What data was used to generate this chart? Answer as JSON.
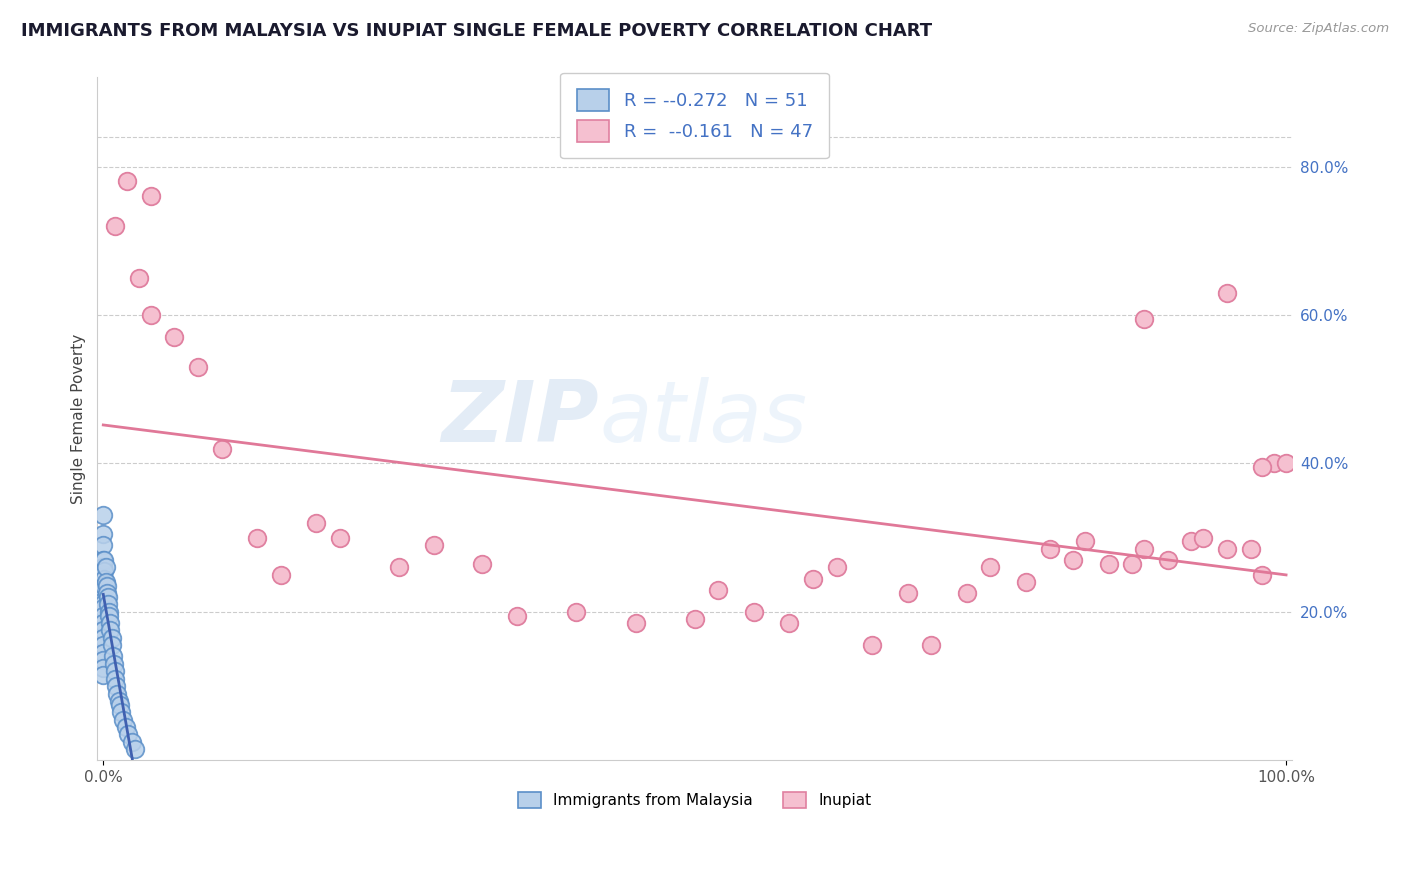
{
  "title": "IMMIGRANTS FROM MALAYSIA VS INUPIAT SINGLE FEMALE POVERTY CORRELATION CHART",
  "source": "Source: ZipAtlas.com",
  "ylabel": "Single Female Poverty",
  "xlim": [
    -0.005,
    1.005
  ],
  "ylim": [
    0.0,
    0.92
  ],
  "xtick_positions": [
    0.0,
    1.0
  ],
  "xtick_labels": [
    "0.0%",
    "100.0%"
  ],
  "ytick_positions": [
    0.2,
    0.4,
    0.6,
    0.8
  ],
  "ytick_labels": [
    "20.0%",
    "40.0%",
    "60.0%",
    "80.0%"
  ],
  "legend_r1": "-0.272",
  "legend_n1": "51",
  "legend_r2": "-0.161",
  "legend_n2": "47",
  "blue_color": "#b8d0ea",
  "blue_edge": "#5b8fc8",
  "pink_color": "#f5c0d0",
  "pink_edge": "#e080a0",
  "line_pink": "#e07898",
  "line_blue": "#4060b0",
  "watermark_color": "#ccddf0",
  "blue_scatter_x": [
    0.0,
    0.0,
    0.0,
    0.0,
    0.0,
    0.0,
    0.0,
    0.0,
    0.0,
    0.0,
    0.0,
    0.0,
    0.0,
    0.0,
    0.0,
    0.0,
    0.0,
    0.0,
    0.0,
    0.0,
    0.0,
    0.001,
    0.001,
    0.001,
    0.001,
    0.002,
    0.002,
    0.003,
    0.003,
    0.004,
    0.004,
    0.005,
    0.005,
    0.006,
    0.006,
    0.007,
    0.007,
    0.008,
    0.009,
    0.01,
    0.01,
    0.011,
    0.012,
    0.013,
    0.014,
    0.015,
    0.017,
    0.019,
    0.021,
    0.024,
    0.027
  ],
  "blue_scatter_y": [
    0.33,
    0.305,
    0.29,
    0.27,
    0.26,
    0.25,
    0.24,
    0.23,
    0.225,
    0.215,
    0.21,
    0.205,
    0.195,
    0.185,
    0.175,
    0.165,
    0.155,
    0.145,
    0.135,
    0.125,
    0.115,
    0.27,
    0.255,
    0.245,
    0.235,
    0.26,
    0.24,
    0.235,
    0.225,
    0.22,
    0.21,
    0.2,
    0.195,
    0.185,
    0.175,
    0.165,
    0.155,
    0.14,
    0.13,
    0.12,
    0.11,
    0.1,
    0.09,
    0.08,
    0.075,
    0.065,
    0.055,
    0.045,
    0.035,
    0.025,
    0.015
  ],
  "pink_scatter_x": [
    0.01,
    0.02,
    0.03,
    0.04,
    0.04,
    0.06,
    0.08,
    0.1,
    0.13,
    0.15,
    0.18,
    0.2,
    0.25,
    0.28,
    0.32,
    0.35,
    0.4,
    0.45,
    0.5,
    0.52,
    0.55,
    0.58,
    0.6,
    0.62,
    0.65,
    0.68,
    0.7,
    0.73,
    0.75,
    0.78,
    0.8,
    0.82,
    0.83,
    0.85,
    0.87,
    0.88,
    0.9,
    0.92,
    0.93,
    0.95,
    0.97,
    0.98,
    0.99,
    1.0,
    0.88,
    0.95,
    0.98
  ],
  "pink_scatter_y": [
    0.72,
    0.78,
    0.65,
    0.76,
    0.6,
    0.57,
    0.53,
    0.42,
    0.3,
    0.25,
    0.32,
    0.3,
    0.26,
    0.29,
    0.265,
    0.195,
    0.2,
    0.185,
    0.19,
    0.23,
    0.2,
    0.185,
    0.245,
    0.26,
    0.155,
    0.225,
    0.155,
    0.225,
    0.26,
    0.24,
    0.285,
    0.27,
    0.295,
    0.265,
    0.265,
    0.285,
    0.27,
    0.295,
    0.3,
    0.285,
    0.285,
    0.25,
    0.4,
    0.4,
    0.595,
    0.63,
    0.395
  ]
}
